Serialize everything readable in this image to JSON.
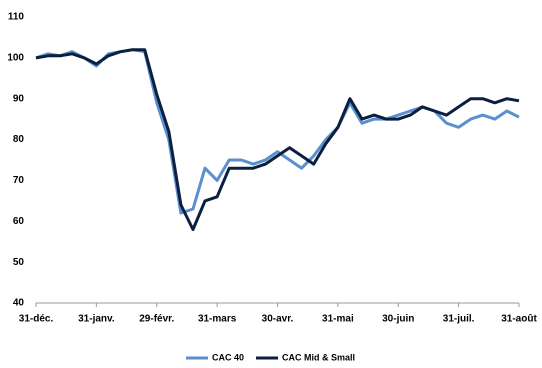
{
  "chart_data": {
    "type": "line",
    "categories": [
      "31-déc.",
      null,
      null,
      null,
      null,
      "31-janv.",
      null,
      null,
      null,
      null,
      "29-févr.",
      null,
      null,
      null,
      null,
      "31-mars",
      null,
      null,
      null,
      null,
      "30-avr.",
      null,
      null,
      null,
      null,
      "31-mai",
      null,
      null,
      null,
      null,
      "30-juin",
      null,
      null,
      null,
      null,
      "31-juil.",
      null,
      null,
      null,
      null,
      "31-août"
    ],
    "series": [
      {
        "name": "CAC 40",
        "color": "#5b8fd0",
        "values": [
          100,
          101,
          100.5,
          101.5,
          100,
          98,
          101,
          101.5,
          102,
          101.5,
          89,
          80,
          62,
          63,
          73,
          70,
          75,
          75,
          74,
          75,
          77,
          75,
          73,
          76,
          80,
          83,
          89,
          84,
          85,
          85,
          86,
          87,
          88,
          87,
          84,
          83,
          85,
          86,
          85,
          87,
          85.5
        ]
      },
      {
        "name": "CAC Mid & Small",
        "color": "#0b1f3f",
        "values": [
          100,
          100.5,
          100.5,
          101,
          100,
          98.5,
          100.5,
          101.5,
          102,
          102,
          91,
          82,
          64,
          58,
          65,
          66,
          73,
          73,
          73,
          74,
          76,
          78,
          76,
          74,
          79,
          83,
          90,
          85,
          86,
          85,
          85,
          86,
          88,
          87,
          86,
          88,
          90,
          90,
          89,
          90,
          89.5
        ]
      }
    ],
    "ylim": [
      40,
      110
    ],
    "yticks": [
      40,
      50,
      60,
      70,
      80,
      90,
      100,
      110
    ],
    "grid": false,
    "legend": "bottom"
  }
}
